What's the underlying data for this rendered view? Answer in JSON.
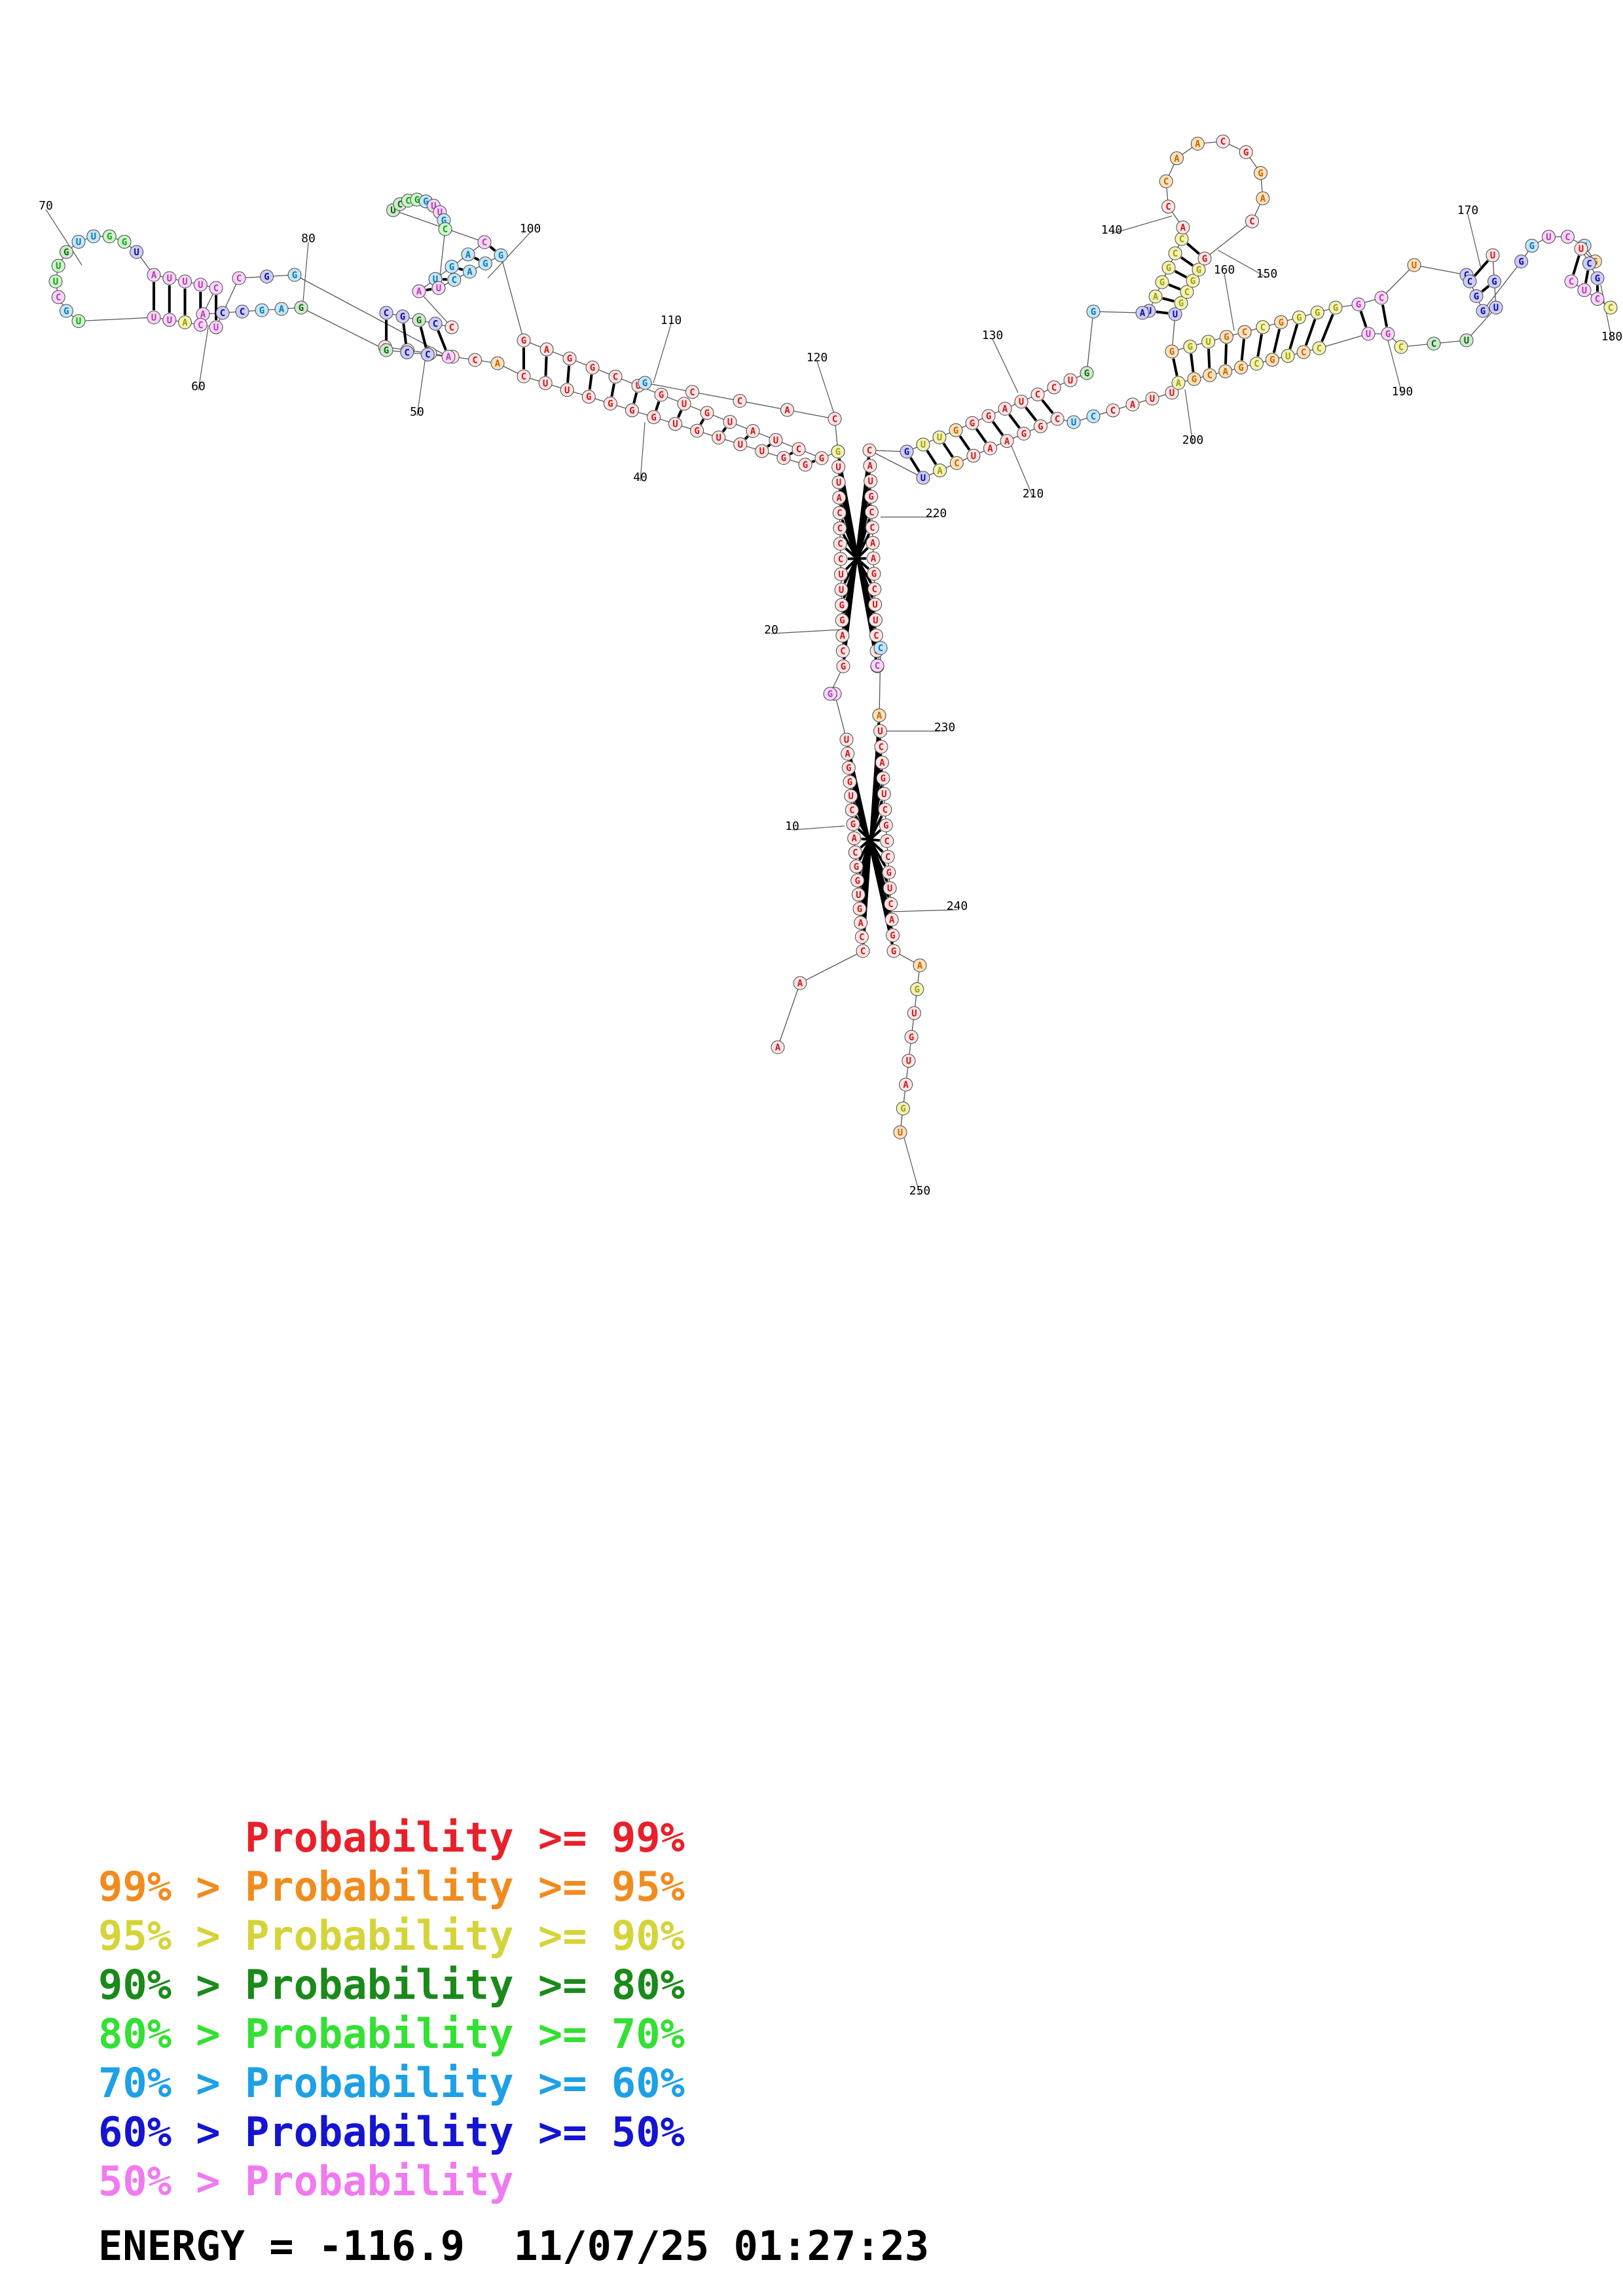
{
  "palette": {
    "red": "#e8202a",
    "orange": "#f08c1e",
    "yellow": "#d4d43a",
    "darkgreen": "#1a8a1a",
    "green": "#33e033",
    "cyan": "#1ea0e6",
    "blue": "#1414d2",
    "pink": "#f07af0"
  },
  "position_labels": [
    "10",
    "20",
    "40",
    "50",
    "60",
    "70",
    "80",
    "100",
    "110",
    "120",
    "130",
    "140",
    "150",
    "160",
    "170",
    "180",
    "190",
    "200",
    "210",
    "220",
    "230",
    "240",
    "250"
  ],
  "legend": [
    {
      "prefix": "    ",
      "text": "Probability >= 99%",
      "color": "red"
    },
    {
      "prefix": "99% > ",
      "text": "Probability >= 95%",
      "color": "orange"
    },
    {
      "prefix": "95% > ",
      "text": "Probability >= 90%",
      "color": "yellow"
    },
    {
      "prefix": "90% > ",
      "text": "Probability >= 80%",
      "color": "darkgreen"
    },
    {
      "prefix": "80% > ",
      "text": "Probability >= 70%",
      "color": "green"
    },
    {
      "prefix": "70% > ",
      "text": "Probability >= 60%",
      "color": "cyan"
    },
    {
      "prefix": "60% > ",
      "text": "Probability >= 50%",
      "color": "blue"
    },
    {
      "prefix": "50% > ",
      "text": "Probability",
      "color": "pink"
    }
  ],
  "legend_texts": {
    "l0": "      Probability >= 99%",
    "l1": "99% > Probability >= 95%",
    "l2": "95% > Probability >= 90%",
    "l3": "90% > Probability >= 80%",
    "l4": "80% > Probability >= 70%",
    "l5": "70% > Probability >= 60%",
    "l6": "60% > Probability >= 50%",
    "l7": "50% > Probability"
  },
  "footer": {
    "energy": "ENERGY = -116.9  11/07/25 01:27:23"
  }
}
